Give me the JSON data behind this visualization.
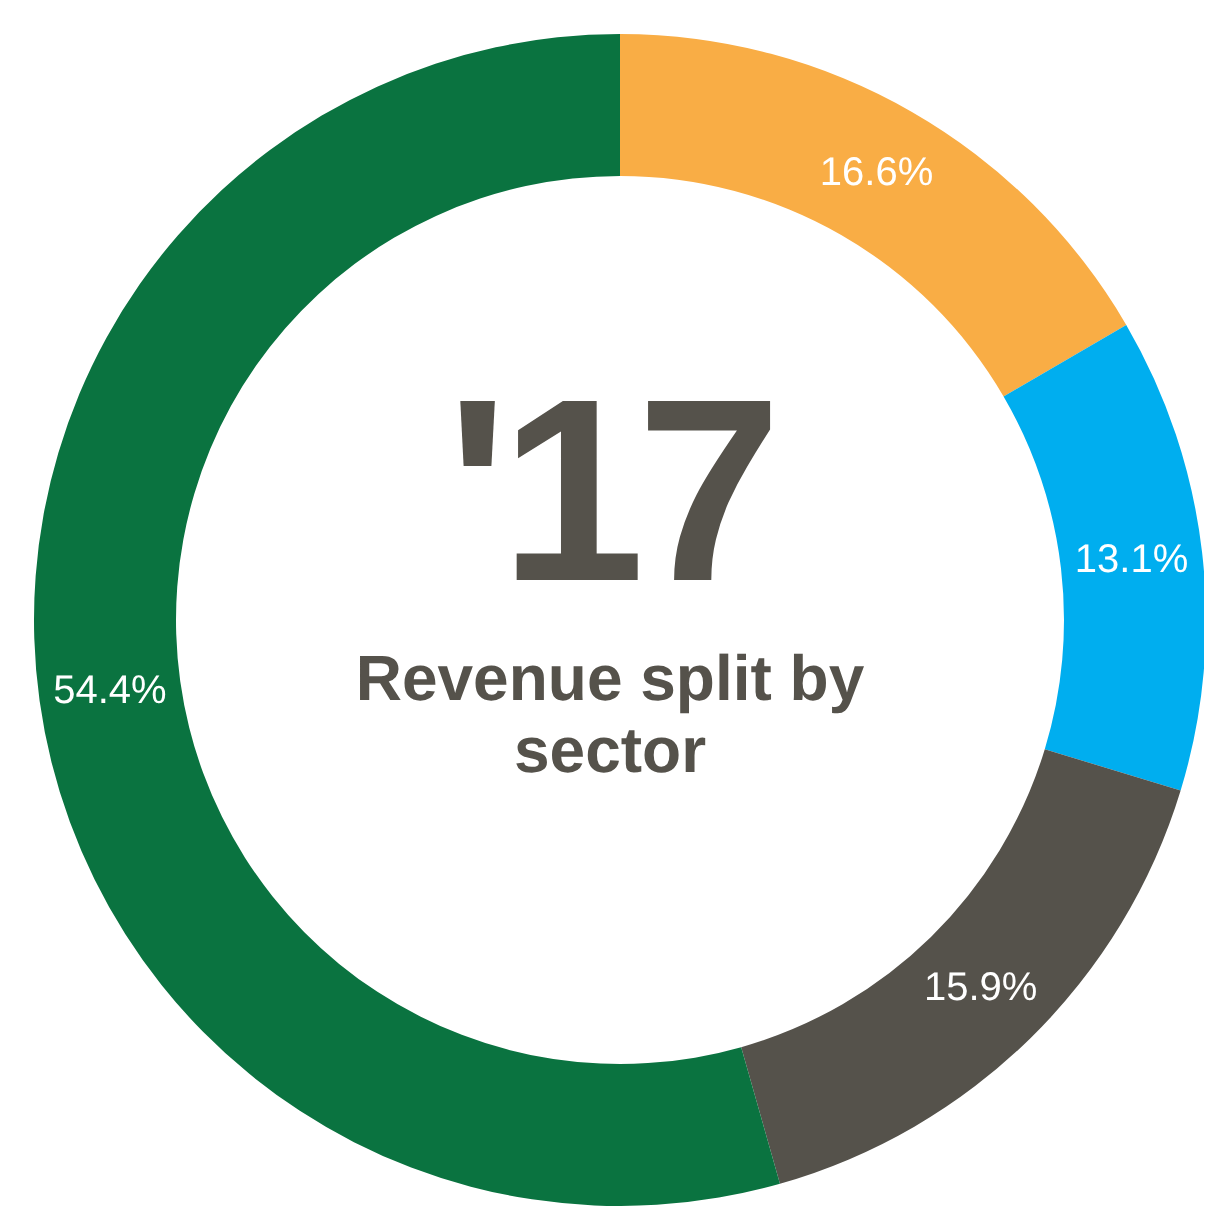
{
  "chart_data": {
    "type": "donut",
    "title": "'17",
    "subtitle": "Revenue split by sector",
    "categories": [
      null,
      null,
      null,
      null
    ],
    "values": [
      16.6,
      13.1,
      15.9,
      54.4
    ],
    "colors": [
      "#f9ad45",
      "#00aeef",
      "#55524b",
      "#0a7340"
    ],
    "value_labels": [
      "16.6%",
      "13.1%",
      "15.9%",
      "54.4%"
    ],
    "legend": false
  }
}
